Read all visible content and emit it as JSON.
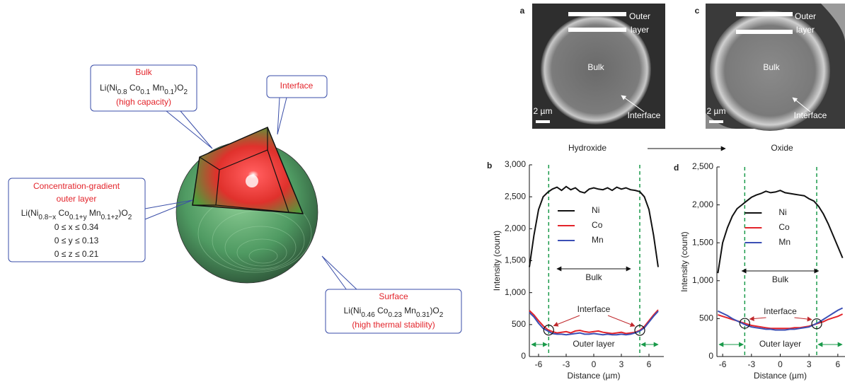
{
  "diagram": {
    "bulk": {
      "title": "Bulk",
      "formula": [
        "Li(Ni",
        "0.8",
        " Co",
        "0.1",
        " Mn",
        "0.1",
        ")O",
        "2"
      ],
      "note": "(high capacity)"
    },
    "interface": {
      "title": "Interface"
    },
    "outer_layer": {
      "title": [
        "Concentration-gradient",
        "outer layer"
      ],
      "formula": [
        "Li(Ni",
        "0.8−x",
        " Co",
        "0.1+y",
        " Mn",
        "0.1+z",
        ")O",
        "2"
      ],
      "ranges": [
        "0 ≤ x ≤ 0.34",
        "0 ≤ y ≤ 0.13",
        "0 ≤ z ≤ 0.21"
      ]
    },
    "surface": {
      "title": "Surface",
      "formula": [
        "Li(Ni",
        "0.46",
        " Co",
        "0.23",
        " Mn",
        "0.31",
        ")O",
        "2"
      ],
      "note": "(high thermal stability)"
    }
  },
  "micrographs": {
    "panels": [
      {
        "label": "a",
        "outer_layer": [
          "Outer",
          "layer"
        ],
        "bulk": "Bulk",
        "interface": "Interface",
        "scale": "2 µm"
      },
      {
        "label": "c",
        "outer_layer": [
          "Outer",
          "layer"
        ],
        "bulk": "Bulk",
        "interface": "Interface",
        "scale": "2 µm"
      }
    ],
    "from": "Hydroxide",
    "to": "Oxide"
  },
  "chart_data": [
    {
      "type": "line",
      "panel_label": "b",
      "x_label": "Distance (µm)",
      "y_label": "Intensity (count)",
      "x": [
        -7,
        -6.5,
        -6,
        -5.5,
        -5,
        -4.5,
        -4,
        -3.5,
        -3,
        -2.5,
        -2,
        -1.5,
        -1,
        -0.5,
        0,
        0.5,
        1,
        1.5,
        2,
        2.5,
        3,
        3.5,
        4,
        4.5,
        5,
        5.5,
        6,
        6.5,
        7
      ],
      "series": [
        {
          "name": "Ni",
          "color": "#111111",
          "values": [
            1400,
            1900,
            2300,
            2500,
            2570,
            2620,
            2650,
            2600,
            2660,
            2610,
            2640,
            2580,
            2560,
            2620,
            2640,
            2620,
            2610,
            2640,
            2600,
            2650,
            2620,
            2640,
            2610,
            2600,
            2580,
            2500,
            2300,
            1900,
            1400
          ]
        },
        {
          "name": "Co",
          "color": "#e3242b",
          "values": [
            720,
            650,
            560,
            480,
            420,
            390,
            370,
            380,
            390,
            370,
            400,
            410,
            390,
            380,
            390,
            400,
            380,
            370,
            360,
            370,
            380,
            360,
            370,
            380,
            410,
            470,
            560,
            650,
            730
          ]
        },
        {
          "name": "Mn",
          "color": "#3b4fb5",
          "values": [
            690,
            620,
            520,
            440,
            400,
            360,
            350,
            350,
            340,
            350,
            360,
            370,
            350,
            350,
            360,
            350,
            340,
            350,
            340,
            340,
            350,
            340,
            350,
            370,
            400,
            450,
            540,
            630,
            710
          ]
        }
      ],
      "xlim": [
        -7,
        7
      ],
      "xticks": [
        -6,
        -3,
        0,
        3,
        6
      ],
      "ylim": [
        0,
        3000
      ],
      "yticks": [
        0,
        500,
        {
          "value": 1000,
          "label": "1,000"
        },
        {
          "value": 1500,
          "label": "1,500"
        },
        {
          "value": 2000,
          "label": "2,000"
        },
        {
          "value": 2500,
          "label": "2,500"
        },
        {
          "value": 3000,
          "label": "3,000"
        }
      ],
      "interface_x": [
        -4.9,
        5.0
      ],
      "annotations": {
        "bulk": "Bulk",
        "interface": "Interface",
        "outer_layer": "Outer layer"
      }
    },
    {
      "type": "line",
      "panel_label": "d",
      "x_label": "Distance (µm)",
      "y_label": "Intensity (count)",
      "x": [
        -6.5,
        -6,
        -5.5,
        -5,
        -4.5,
        -4,
        -3.5,
        -3,
        -2.5,
        -2,
        -1.5,
        -1,
        -0.5,
        0,
        0.5,
        1,
        1.5,
        2,
        2.5,
        3,
        3.5,
        4,
        4.5,
        5,
        5.5,
        6,
        6.5
      ],
      "series": [
        {
          "name": "Ni",
          "color": "#111111",
          "values": [
            1100,
            1500,
            1700,
            1850,
            1950,
            2000,
            2050,
            2100,
            2130,
            2150,
            2180,
            2160,
            2170,
            2190,
            2160,
            2150,
            2140,
            2130,
            2120,
            2080,
            2050,
            1980,
            1880,
            1750,
            1600,
            1450,
            1300
          ]
        },
        {
          "name": "Co",
          "color": "#e3242b",
          "values": [
            550,
            530,
            510,
            490,
            470,
            450,
            430,
            410,
            400,
            390,
            380,
            370,
            370,
            370,
            370,
            370,
            380,
            380,
            390,
            400,
            420,
            440,
            460,
            490,
            510,
            530,
            560
          ]
        },
        {
          "name": "Mn",
          "color": "#3b4fb5",
          "values": [
            600,
            570,
            540,
            500,
            470,
            440,
            410,
            390,
            380,
            370,
            360,
            360,
            350,
            350,
            350,
            360,
            360,
            370,
            380,
            390,
            420,
            450,
            490,
            530,
            570,
            610,
            640
          ]
        }
      ],
      "xlim": [
        -6.6,
        6.6
      ],
      "xticks": [
        -6,
        -3,
        0,
        3,
        6
      ],
      "ylim": [
        0,
        2500
      ],
      "yticks": [
        0,
        500,
        {
          "value": 1000,
          "label": "1,000"
        },
        {
          "value": 1500,
          "label": "1,500"
        },
        {
          "value": 2000,
          "label": "2,000"
        },
        {
          "value": 2500,
          "label": "2,500"
        }
      ],
      "interface_x": [
        -3.7,
        3.8
      ],
      "annotations": {
        "bulk": "Bulk",
        "interface": "Interface",
        "outer_layer": "Outer layer"
      }
    }
  ]
}
